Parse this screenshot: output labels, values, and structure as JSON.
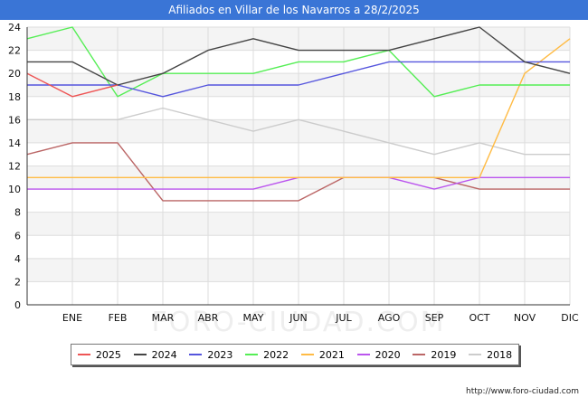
{
  "title": "Afiliados en Villar de los Navarros a 28/2/2025",
  "source": "http://www.foro-ciudad.com",
  "watermark": "FORO-CIUDAD.COM",
  "chart_data": {
    "type": "line",
    "title": "Afiliados en Villar de los Navarros a 28/2/2025",
    "categories": [
      "",
      "ENE",
      "FEB",
      "MAR",
      "ABR",
      "MAY",
      "JUN",
      "JUL",
      "AGO",
      "SEP",
      "OCT",
      "NOV",
      "DIC"
    ],
    "ylim": [
      0,
      24
    ],
    "yticks": [
      0,
      2,
      4,
      6,
      8,
      10,
      12,
      14,
      16,
      18,
      20,
      22,
      24
    ],
    "grid": true,
    "legend_position": "bottom",
    "series": [
      {
        "name": "2025",
        "color": "#ee5555",
        "values": [
          20,
          18,
          19,
          null,
          null,
          null,
          null,
          null,
          null,
          null,
          null,
          null,
          null
        ]
      },
      {
        "name": "2024",
        "color": "#444444",
        "values": [
          21,
          21,
          19,
          20,
          22,
          23,
          22,
          22,
          22,
          23,
          24,
          21,
          20
        ]
      },
      {
        "name": "2023",
        "color": "#5555dd",
        "values": [
          19,
          19,
          19,
          18,
          19,
          19,
          19,
          20,
          21,
          21,
          21,
          21,
          21
        ]
      },
      {
        "name": "2022",
        "color": "#55ee55",
        "values": [
          23,
          24,
          18,
          20,
          20,
          20,
          21,
          21,
          22,
          18,
          19,
          19,
          19
        ]
      },
      {
        "name": "2021",
        "color": "#ffbb44",
        "values": [
          11,
          11,
          11,
          11,
          11,
          11,
          11,
          11,
          11,
          11,
          11,
          20,
          23
        ]
      },
      {
        "name": "2020",
        "color": "#bb55ee",
        "values": [
          10,
          10,
          10,
          10,
          10,
          10,
          11,
          11,
          11,
          10,
          11,
          11,
          11
        ]
      },
      {
        "name": "2019",
        "color": "#bb6666",
        "values": [
          13,
          14,
          14,
          9,
          9,
          9,
          9,
          11,
          11,
          11,
          10,
          10,
          10
        ]
      },
      {
        "name": "2018",
        "color": "#cccccc",
        "values": [
          16,
          16,
          16,
          17,
          16,
          15,
          16,
          15,
          14,
          13,
          14,
          13,
          13
        ]
      }
    ]
  }
}
